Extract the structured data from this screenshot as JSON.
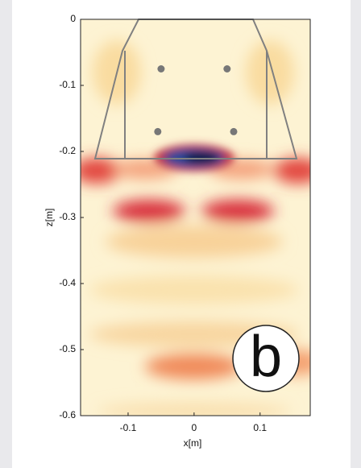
{
  "chart_data": {
    "type": "heatmap",
    "xlabel": "x[m]",
    "ylabel": "z[m]",
    "xlim": [
      -0.172,
      0.176
    ],
    "ylim": [
      -0.6,
      0
    ],
    "xticks": [
      -0.1,
      0,
      0.1
    ],
    "yticks": [
      0,
      -0.1,
      -0.2,
      -0.3,
      -0.4,
      -0.5,
      -0.6
    ],
    "markers": {
      "color": "#777777",
      "x": [
        -0.05,
        0.05,
        -0.055,
        0.06
      ],
      "y": [
        -0.075,
        -0.075,
        -0.17,
        -0.17
      ]
    },
    "panel_label": "b"
  }
}
